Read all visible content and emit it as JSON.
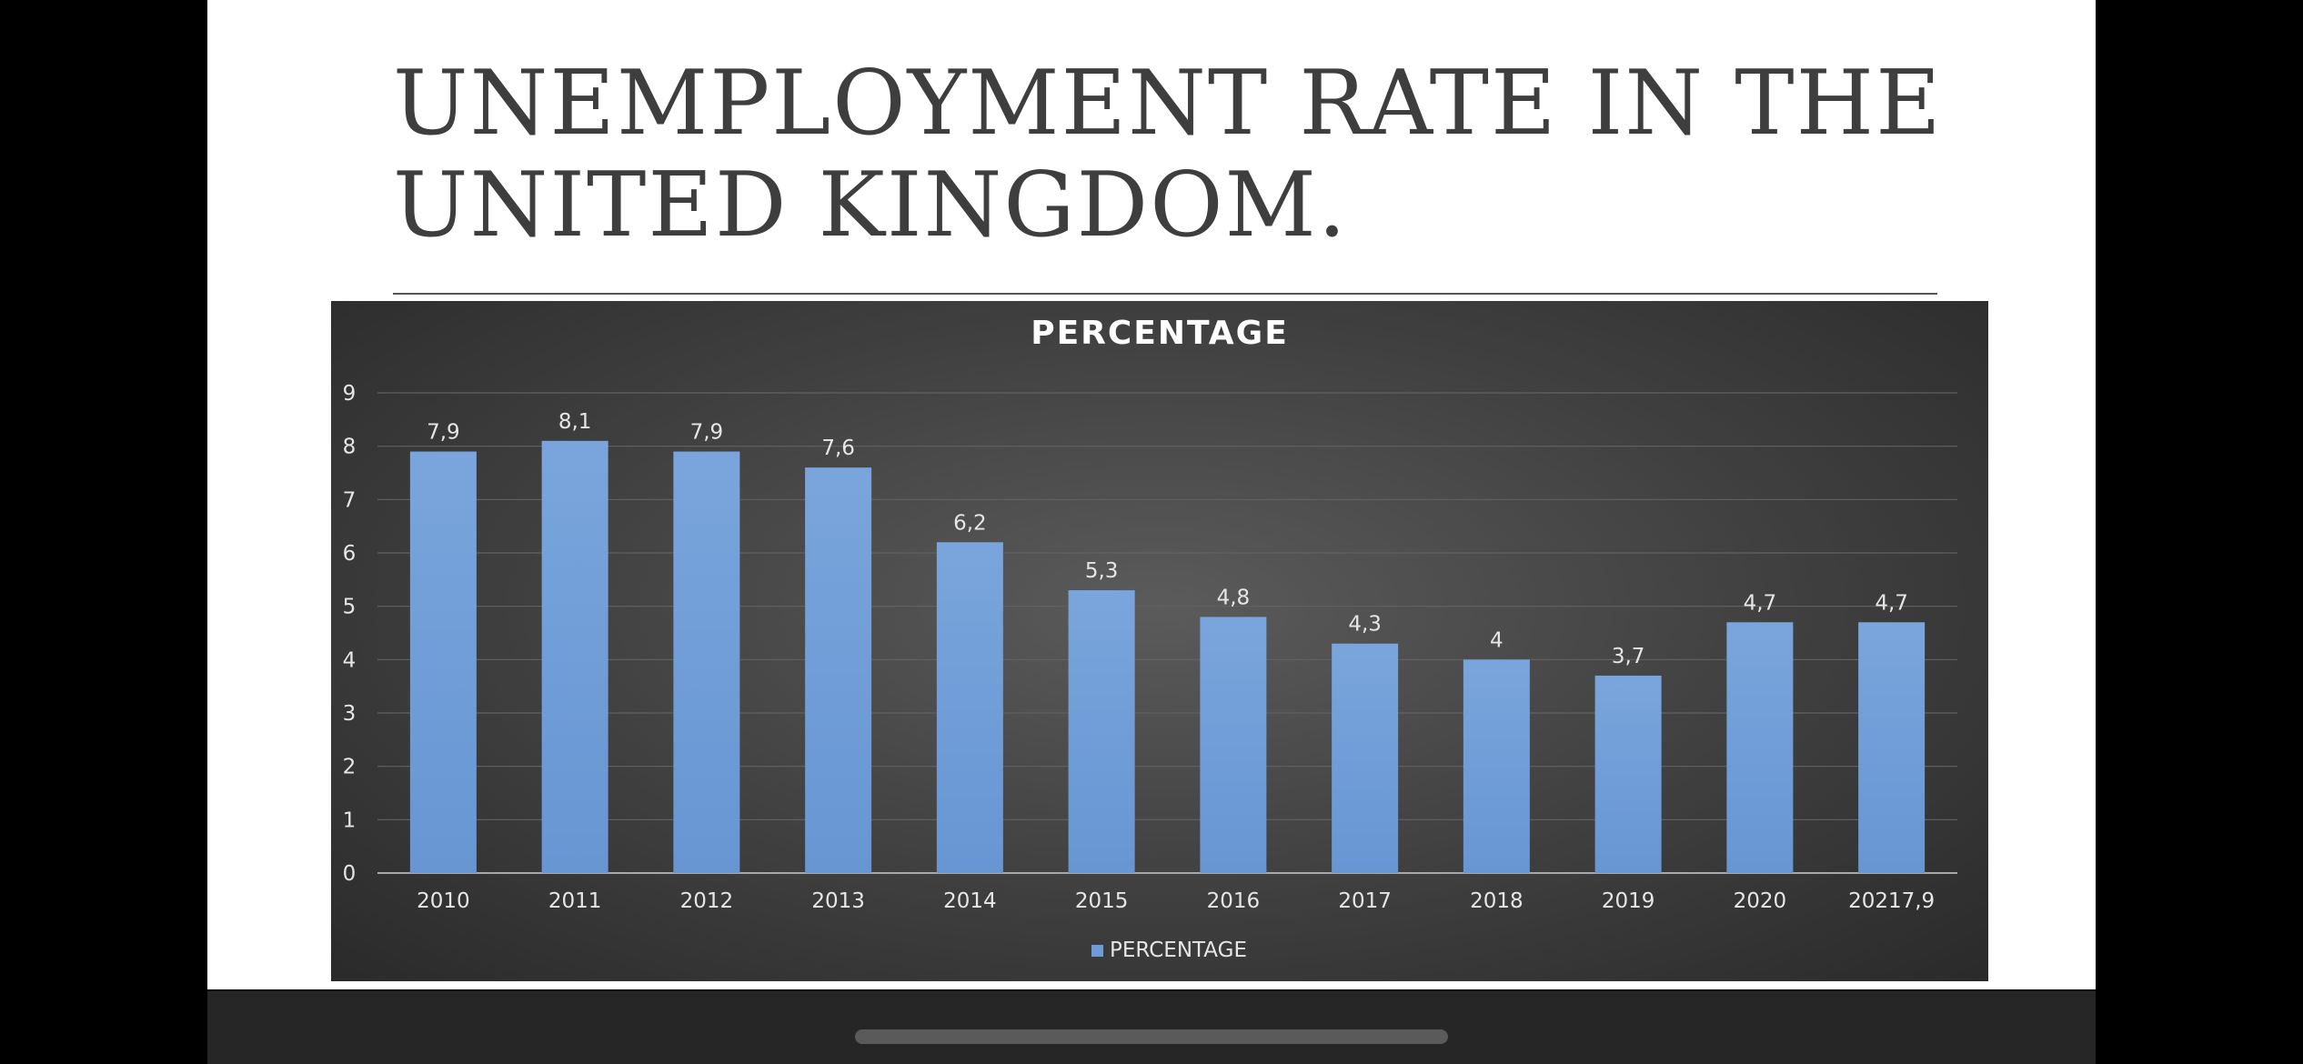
{
  "slide": {
    "title": "UNEMPLOYMENT RATE IN THE UNITED KINGDOM."
  },
  "colors": {
    "bar": "#6f9bd6",
    "panel": "#404040",
    "text": "#e6e6e6"
  },
  "chart_data": {
    "type": "bar",
    "title": "PERCENTAGE",
    "categories": [
      "2010",
      "2011",
      "2012",
      "2013",
      "2014",
      "2015",
      "2016",
      "2017",
      "2018",
      "2019",
      "2020",
      "20217,9"
    ],
    "series": [
      {
        "name": "PERCENTAGE",
        "values": [
          7.9,
          8.1,
          7.9,
          7.6,
          6.2,
          5.3,
          4.8,
          4.3,
          4,
          3.7,
          4.7,
          4.7
        ],
        "labels": [
          "7,9",
          "8,1",
          "7,9",
          "7,6",
          "6,2",
          "5,3",
          "4,8",
          "4,3",
          "4",
          "3,7",
          "4,7",
          "4,7"
        ]
      }
    ],
    "ylim": [
      0,
      9
    ],
    "yticks": [
      "0",
      "1",
      "2",
      "3",
      "4",
      "5",
      "6",
      "7",
      "8",
      "9"
    ],
    "grid": true,
    "legend": "bottom",
    "xlabel": "",
    "ylabel": ""
  }
}
